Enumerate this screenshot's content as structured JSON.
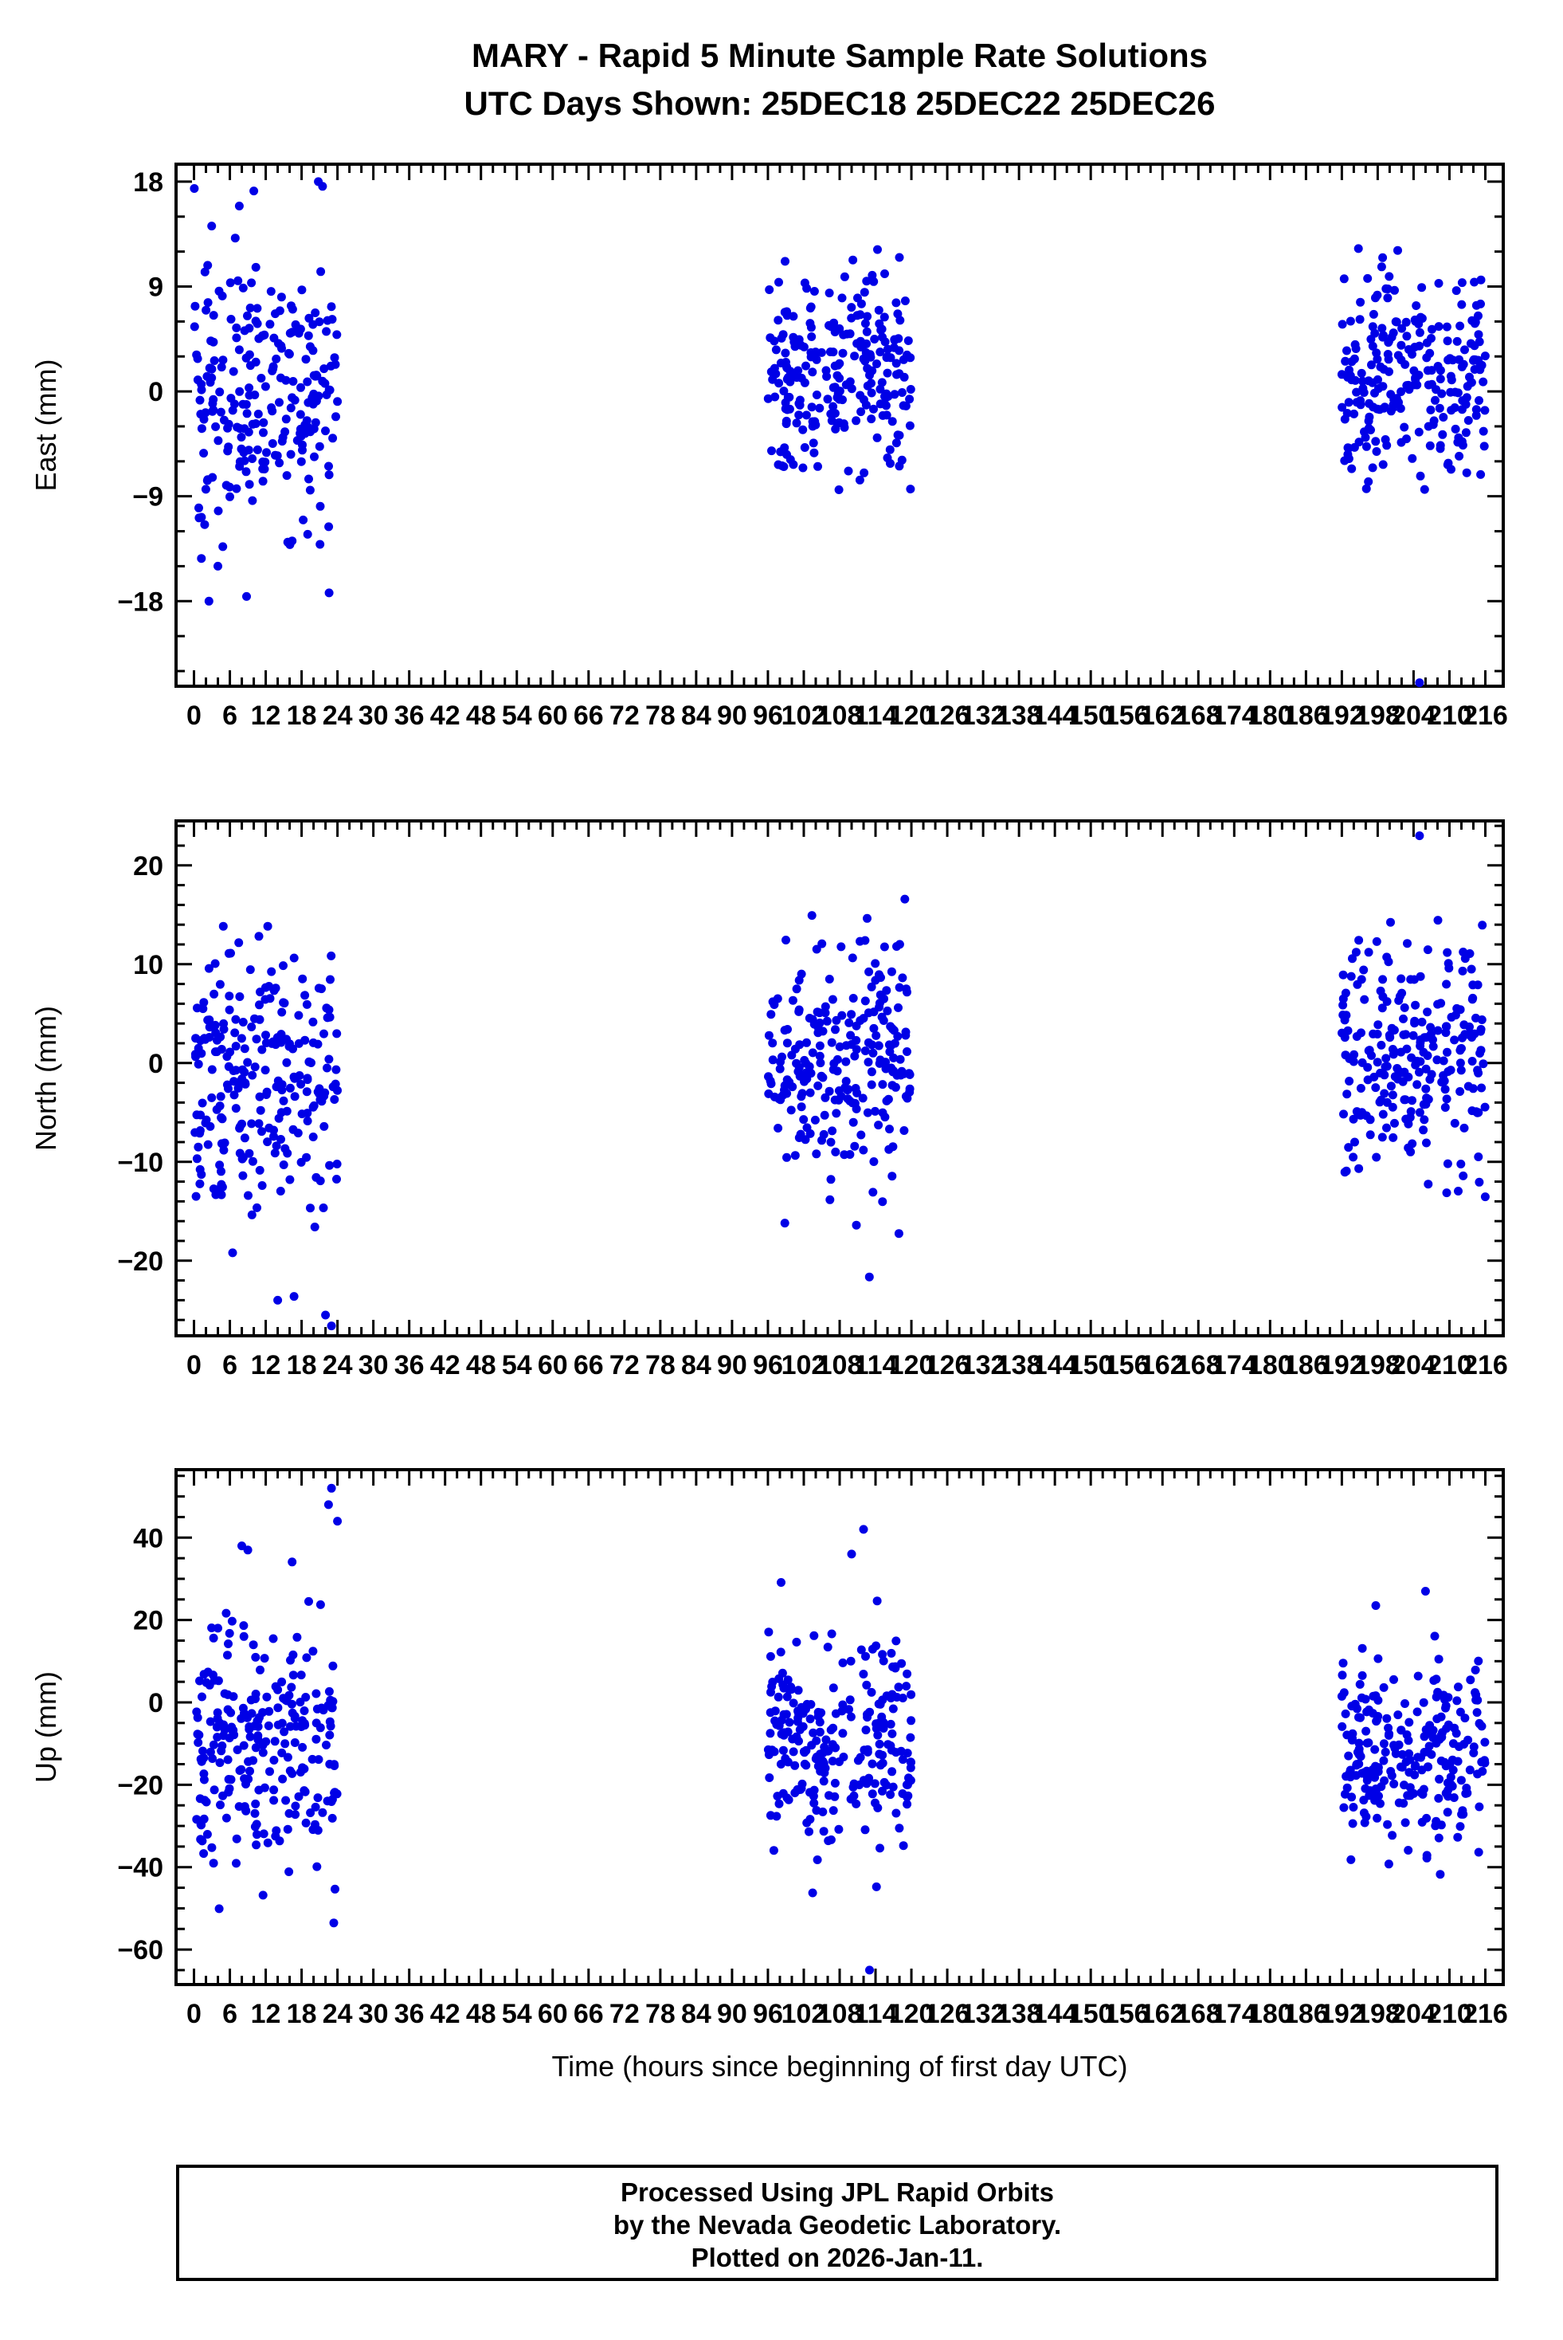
{
  "title": {
    "line1": "MARY - Rapid 5 Minute Sample Rate Solutions",
    "line2": "UTC Days Shown:  25DEC18 25DEC22 25DEC26"
  },
  "xlabel": "Time (hours since beginning of first day UTC)",
  "footer": {
    "line1": "Processed Using JPL Rapid Orbits",
    "line2": "by the Nevada Geodetic Laboratory.",
    "line3": "Plotted on 2026-Jan-11."
  },
  "chart_data": {
    "type": "scatter",
    "point_color": "#0000e6",
    "x_axis": {
      "min": -3,
      "max": 219,
      "major_step": 6,
      "minor_step": 2,
      "tick_labels": [
        0,
        6,
        12,
        18,
        24,
        30,
        36,
        42,
        48,
        54,
        60,
        66,
        72,
        78,
        84,
        90,
        96,
        102,
        108,
        114,
        120,
        126,
        132,
        138,
        144,
        150,
        156,
        162,
        168,
        174,
        180,
        186,
        192,
        198,
        204,
        210,
        216
      ]
    },
    "panels": [
      {
        "key": "east",
        "ylabel": "East (mm)",
        "ymin": -25.3,
        "ymax": 19.5,
        "yticks": [
          -18,
          -9,
          0,
          9,
          18
        ],
        "y_minor_step": 3,
        "clusters": [
          {
            "x0": 0,
            "x1": 24,
            "n": 240,
            "mean": -0.5,
            "std": 5.5,
            "min": -19,
            "max": 18
          },
          {
            "x0": 96,
            "x1": 120,
            "n": 240,
            "mean": 1.5,
            "std": 4.3,
            "min": -9.5,
            "max": 15
          },
          {
            "x0": 192,
            "x1": 216,
            "n": 240,
            "mean": 1.0,
            "std": 4.3,
            "min": -9.5,
            "max": 12.5
          }
        ],
        "outliers": [
          [
            2.5,
            -18
          ],
          [
            4,
            -15
          ],
          [
            10,
            17.2
          ],
          [
            20.8,
            18
          ],
          [
            21.5,
            17.6
          ],
          [
            118,
            11.5
          ],
          [
            205,
            -25
          ]
        ]
      },
      {
        "key": "north",
        "ylabel": "North (mm)",
        "ymin": -27.6,
        "ymax": 24.5,
        "yticks": [
          -20,
          -10,
          0,
          10,
          20
        ],
        "y_minor_step": 2,
        "clusters": [
          {
            "x0": 0,
            "x1": 24,
            "n": 240,
            "mean": -2,
            "std": 7,
            "min": -24,
            "max": 14.5
          },
          {
            "x0": 96,
            "x1": 120,
            "n": 240,
            "mean": 0,
            "std": 6.5,
            "min": -22,
            "max": 17.5
          },
          {
            "x0": 192,
            "x1": 216,
            "n": 240,
            "mean": 1,
            "std": 6,
            "min": -16,
            "max": 17
          }
        ],
        "outliers": [
          [
            14,
            -24
          ],
          [
            22,
            -25.5
          ],
          [
            23,
            -26.6
          ],
          [
            205,
            23
          ]
        ]
      },
      {
        "key": "up",
        "ylabel": "Up (mm)",
        "ymin": -68.5,
        "ymax": 56.5,
        "yticks": [
          -60,
          -40,
          -20,
          0,
          20,
          40
        ],
        "y_minor_step": 5,
        "clusters": [
          {
            "x0": 0,
            "x1": 24,
            "n": 240,
            "mean": -12,
            "std": 16,
            "min": -62,
            "max": 40
          },
          {
            "x0": 96,
            "x1": 120,
            "n": 240,
            "mean": -10,
            "std": 13,
            "min": -50,
            "max": 30
          },
          {
            "x0": 192,
            "x1": 216,
            "n": 240,
            "mean": -13,
            "std": 11,
            "min": -54,
            "max": 28
          }
        ],
        "outliers": [
          [
            8,
            38
          ],
          [
            9,
            37
          ],
          [
            22.5,
            48
          ],
          [
            23,
            52
          ],
          [
            24,
            44
          ],
          [
            110,
            36
          ],
          [
            112,
            42
          ],
          [
            113,
            -65
          ],
          [
            206,
            27
          ]
        ]
      }
    ]
  }
}
